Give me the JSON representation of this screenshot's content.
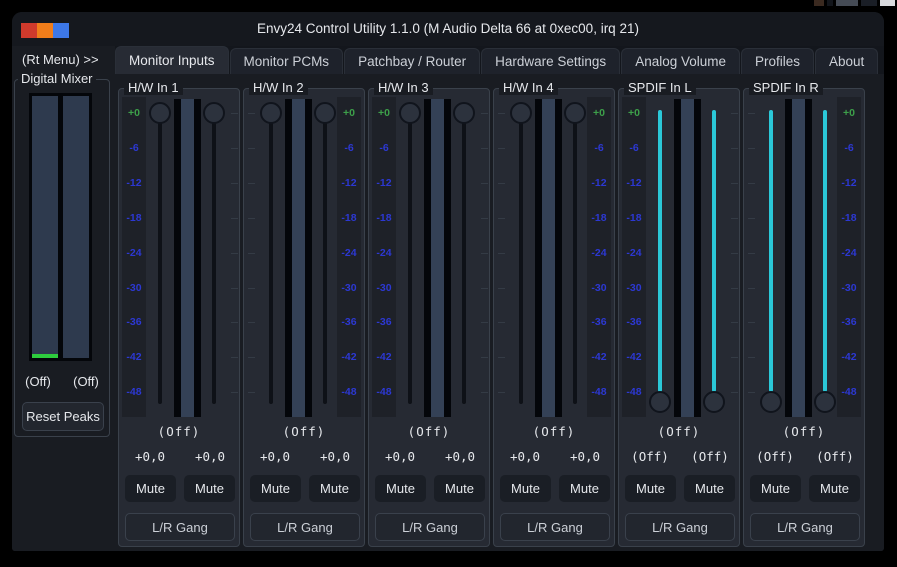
{
  "desktop": {
    "artifacts": [
      {
        "color": "#3b2a20",
        "width": 10
      },
      {
        "color": "#12151b",
        "width": 6
      },
      {
        "color": "#454b55",
        "width": 22
      },
      {
        "color": "#1a1e26",
        "width": 16
      },
      {
        "color": "#d9dbdf",
        "width": 15
      }
    ]
  },
  "window": {
    "title": "Envy24 Control Utility 1.1.0 (M Audio Delta 66 at 0xec00, irq 21)",
    "titlebar_buttons": [
      {
        "name": "titlebar-button-red",
        "color": "#cf3a2c"
      },
      {
        "name": "titlebar-button-orange",
        "color": "#f07d1a"
      },
      {
        "name": "titlebar-button-blue",
        "color": "#3d78e8"
      }
    ]
  },
  "sidebar": {
    "rt_menu_label": "(Rt Menu) >>",
    "frame_label": "Digital Mixer",
    "meter_off_labels": [
      "(Off)",
      "(Off)"
    ],
    "reset_button_label": "Reset Peaks"
  },
  "tabs": [
    {
      "label": "Monitor Inputs",
      "active": true
    },
    {
      "label": "Monitor PCMs",
      "active": false
    },
    {
      "label": "Patchbay / Router",
      "active": false
    },
    {
      "label": "Hardware Settings",
      "active": false
    },
    {
      "label": "Analog Volume",
      "active": false
    },
    {
      "label": "Profiles",
      "active": false
    },
    {
      "label": "About",
      "active": false
    }
  ],
  "scale_labels": [
    "+0",
    "-6",
    "-12",
    "-18",
    "-24",
    "-30",
    "-36",
    "-42",
    "-48"
  ],
  "strips": [
    {
      "title": "H/W In 1",
      "scale_side": "left",
      "sliders": "top",
      "fill": false,
      "meter_label": "(Off)",
      "values": [
        "+0,0",
        "+0,0"
      ],
      "mute_labels": [
        "Mute",
        "Mute"
      ],
      "gang_label": "L/R Gang"
    },
    {
      "title": "H/W In 2",
      "scale_side": "right",
      "sliders": "top",
      "fill": false,
      "meter_label": "(Off)",
      "values": [
        "+0,0",
        "+0,0"
      ],
      "mute_labels": [
        "Mute",
        "Mute"
      ],
      "gang_label": "L/R Gang"
    },
    {
      "title": "H/W In 3",
      "scale_side": "left",
      "sliders": "top",
      "fill": false,
      "meter_label": "(Off)",
      "values": [
        "+0,0",
        "+0,0"
      ],
      "mute_labels": [
        "Mute",
        "Mute"
      ],
      "gang_label": "L/R Gang"
    },
    {
      "title": "H/W In 4",
      "scale_side": "right",
      "sliders": "top",
      "fill": false,
      "meter_label": "(Off)",
      "values": [
        "+0,0",
        "+0,0"
      ],
      "mute_labels": [
        "Mute",
        "Mute"
      ],
      "gang_label": "L/R Gang"
    },
    {
      "title": "SPDIF In L",
      "scale_side": "left",
      "sliders": "bottom",
      "fill": true,
      "meter_label": "(Off)",
      "values": [
        "(Off)",
        "(Off)"
      ],
      "mute_labels": [
        "Mute",
        "Mute"
      ],
      "gang_label": "L/R Gang"
    },
    {
      "title": "SPDIF In R",
      "scale_side": "right",
      "sliders": "bottom",
      "fill": true,
      "meter_label": "(Off)",
      "values": [
        "(Off)",
        "(Off)"
      ],
      "mute_labels": [
        "Mute",
        "Mute"
      ],
      "gang_label": "L/R Gang"
    }
  ],
  "colors": {
    "page_bg": "#191c22",
    "panel_bg": "#262a33",
    "panel_border": "#3a414b",
    "titlebar_bg": "#15181e",
    "tabbar_bg": "#13161c",
    "tab_bg": "#1e222b",
    "tab_active_bg": "#272b34",
    "scale_bg": "#1e2128",
    "scale_green": "#3da04a",
    "scale_blue": "#2c38d2",
    "meter_black": "#04060a",
    "meter_slate": "#344156",
    "sidebar_meter_slate": "#2e3a4e",
    "peak_green": "#2ecc3e",
    "accent_cyan": "#2bc8d8",
    "knob_bg": "#2c323d",
    "knob_border": "#10141c",
    "trough_bg": "#0e1117",
    "button_bg": "#1a1e25",
    "button_border": "#3a414c",
    "gang_bg": "#22262e",
    "text_main": "#e6e8ec",
    "text_dim": "#ccd0d7"
  }
}
